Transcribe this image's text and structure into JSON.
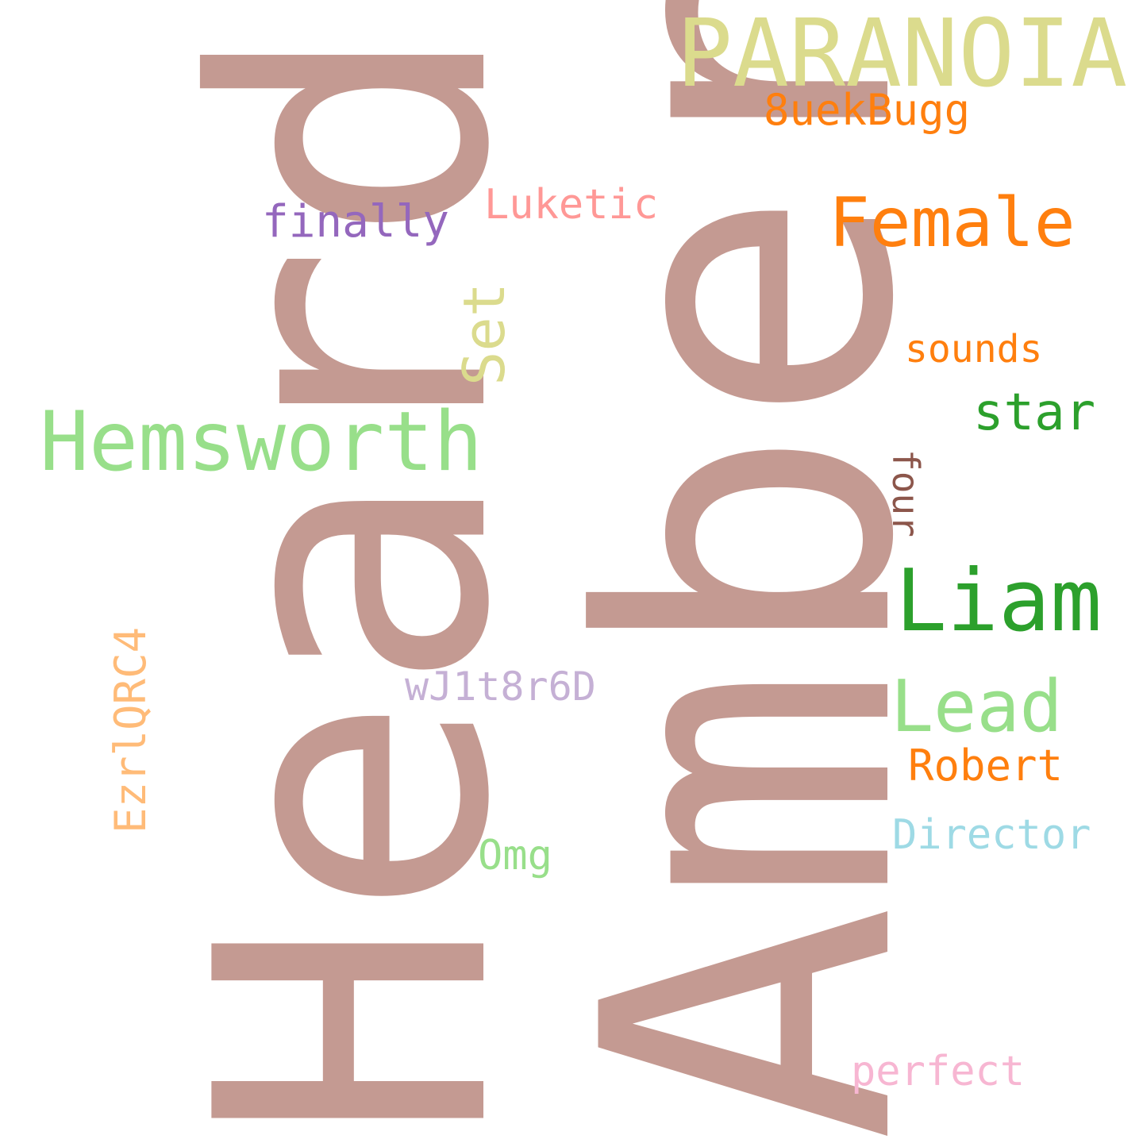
{
  "words": [
    {
      "id": "amber",
      "text": "Amber",
      "color": "#c49a92"
    },
    {
      "id": "heard",
      "text": "Heard",
      "color": "#c49a92"
    },
    {
      "id": "paranoia",
      "text": "PARANOIA",
      "color": "#dbdb8d"
    },
    {
      "id": "8uekbugg",
      "text": "8uekBugg",
      "color": "#ff7f0e"
    },
    {
      "id": "female",
      "text": "Female",
      "color": "#ff7f0e"
    },
    {
      "id": "luketic",
      "text": "Luketic",
      "color": "#ff9896"
    },
    {
      "id": "finally",
      "text": "finally",
      "color": "#9467bd"
    },
    {
      "id": "set",
      "text": "Set",
      "color": "#dbdb8d"
    },
    {
      "id": "hemsworth",
      "text": "Hemsworth",
      "color": "#98df8a"
    },
    {
      "id": "sounds",
      "text": "sounds",
      "color": "#ff7f0e"
    },
    {
      "id": "four",
      "text": "four",
      "color": "#8c564b"
    },
    {
      "id": "star",
      "text": "star",
      "color": "#2ca02c"
    },
    {
      "id": "liam",
      "text": "Liam",
      "color": "#2ca02c"
    },
    {
      "id": "lead",
      "text": "Lead",
      "color": "#98df8a"
    },
    {
      "id": "wj1t8r6d",
      "text": "wJ1t8r6D",
      "color": "#c5b0d5"
    },
    {
      "id": "ezrlqrc4",
      "text": "EzrlQRC4",
      "color": "#ffbb78"
    },
    {
      "id": "robert",
      "text": "Robert",
      "color": "#ff7f0e"
    },
    {
      "id": "director",
      "text": "Director",
      "color": "#9edae5"
    },
    {
      "id": "omg",
      "text": "Omg",
      "color": "#98df8a"
    },
    {
      "id": "perfect",
      "text": "perfect",
      "color": "#f7b6d2"
    }
  ]
}
